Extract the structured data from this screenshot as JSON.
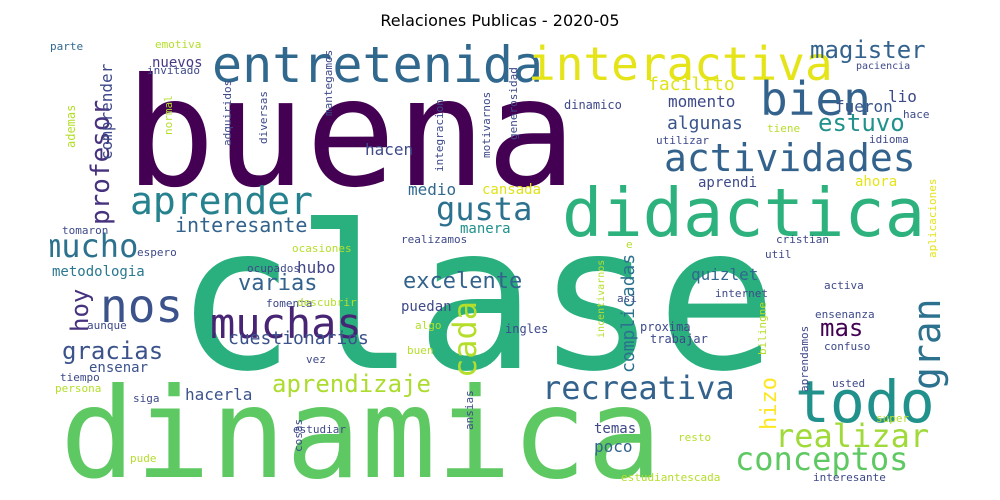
{
  "title": "Relaciones Publicas - 2020-05",
  "words": [
    {
      "text": "buena",
      "color": "#440154"
    },
    {
      "text": "clase",
      "color": "#2ab07f"
    },
    {
      "text": "dinamica",
      "color": "#5ec962"
    },
    {
      "text": "didactica",
      "color": "#2db27d"
    },
    {
      "text": "entretenida",
      "color": "#31688e"
    },
    {
      "text": "interactiva",
      "color": "#e4e419"
    },
    {
      "text": "bien",
      "color": "#33638d"
    },
    {
      "text": "actividades",
      "color": "#33638d"
    },
    {
      "text": "todo",
      "color": "#21918c"
    },
    {
      "text": "aprender",
      "color": "#26828e"
    },
    {
      "text": "mucho",
      "color": "#2c728e"
    },
    {
      "text": "nos",
      "color": "#3b528b"
    },
    {
      "text": "muchas",
      "color": "#482475"
    },
    {
      "text": "recreativa",
      "color": "#33638d"
    },
    {
      "text": "realizar",
      "color": "#a0da39"
    },
    {
      "text": "conceptos",
      "color": "#5ec962"
    },
    {
      "text": "gusta",
      "color": "#2c728e"
    },
    {
      "text": "cada",
      "color": "#b5de2b"
    },
    {
      "text": "gran",
      "color": "#2c728e"
    },
    {
      "text": "magister",
      "color": "#33638d"
    },
    {
      "text": "estuvo",
      "color": "#21918c"
    },
    {
      "text": "profesor",
      "color": "#46327e"
    },
    {
      "text": "gracias",
      "color": "#3b528b"
    },
    {
      "text": "aprendizaje",
      "color": "#addc30"
    },
    {
      "text": "excelente",
      "color": "#33638d"
    },
    {
      "text": "varias",
      "color": "#33638d"
    },
    {
      "text": "cuestionarios",
      "color": "#3b528b"
    },
    {
      "text": "hoy",
      "color": "#46327e"
    },
    {
      "text": "hizo",
      "color": "#fde725"
    },
    {
      "text": "mas",
      "color": "#440154"
    },
    {
      "text": "interesante",
      "color": "#33638d"
    },
    {
      "text": "hacerla",
      "color": "#3b528b"
    },
    {
      "text": "fueron",
      "color": "#39568c"
    },
    {
      "text": "facilito",
      "color": "#dfe318"
    },
    {
      "text": "momento",
      "color": "#3e4989"
    },
    {
      "text": "algunas",
      "color": "#39568c"
    },
    {
      "text": "lio",
      "color": "#3e4989"
    },
    {
      "text": "metodologia",
      "color": "#2a788e"
    },
    {
      "text": "complicadas",
      "color": "#2c728e"
    },
    {
      "text": "quizlet",
      "color": "#31688e"
    },
    {
      "text": "temas",
      "color": "#3e4989"
    },
    {
      "text": "poco",
      "color": "#33638d"
    },
    {
      "text": "hubo",
      "color": "#414487"
    },
    {
      "text": "puedan",
      "color": "#3e4989"
    },
    {
      "text": "hacen",
      "color": "#3e4989"
    },
    {
      "text": "medio",
      "color": "#31688e"
    },
    {
      "text": "cansada",
      "color": "#dfe318"
    },
    {
      "text": "manera",
      "color": "#21918c"
    },
    {
      "text": "ahora",
      "color": "#e5e419"
    },
    {
      "text": "aprendi",
      "color": "#3e4989"
    },
    {
      "text": "comprender",
      "color": "#3e4989"
    },
    {
      "text": "nuevos",
      "color": "#443983"
    },
    {
      "text": "emotiva",
      "color": "#b5de2b"
    },
    {
      "text": "invitado",
      "color": "#3e4989"
    },
    {
      "text": "ademas",
      "color": "#b5de2b"
    },
    {
      "text": "ensenar",
      "color": "#3b528b"
    },
    {
      "text": "parte",
      "color": "#31688e"
    },
    {
      "text": "paciencia",
      "color": "#3e4989"
    },
    {
      "text": "dinamico",
      "color": "#3e4989"
    },
    {
      "text": "utilizar",
      "color": "#3e4989"
    },
    {
      "text": "tiene",
      "color": "#b5de2b"
    },
    {
      "text": "idioma",
      "color": "#3e4989"
    },
    {
      "text": "hace",
      "color": "#3e4989"
    },
    {
      "text": "realizamos",
      "color": "#3e4989"
    },
    {
      "text": "cristian",
      "color": "#3e4989"
    },
    {
      "text": "util",
      "color": "#3e4989"
    },
    {
      "text": "internet",
      "color": "#3e4989"
    },
    {
      "text": "activa",
      "color": "#3e4989"
    },
    {
      "text": "ensenanza",
      "color": "#3e4989"
    },
    {
      "text": "proxima",
      "color": "#3e4989"
    },
    {
      "text": "trabajar",
      "color": "#3e4989"
    },
    {
      "text": "ingles",
      "color": "#3e4989"
    },
    {
      "text": "confuso",
      "color": "#3e4989"
    },
    {
      "text": "usted",
      "color": "#3e4989"
    },
    {
      "text": "super",
      "color": "#b5de2b"
    },
    {
      "text": "resto",
      "color": "#b5de2b"
    },
    {
      "text": "estudiantescada",
      "color": "#b5de2b"
    },
    {
      "text": "interesante",
      "color": "#3e4989"
    },
    {
      "text": "ocupados",
      "color": "#3e4989"
    },
    {
      "text": "ocasiones",
      "color": "#b5de2b"
    },
    {
      "text": "espero",
      "color": "#3e4989"
    },
    {
      "text": "fomenta",
      "color": "#3e4989"
    },
    {
      "text": "descubrir",
      "color": "#b5de2b"
    },
    {
      "text": "algo",
      "color": "#b5de2b"
    },
    {
      "text": "aunque",
      "color": "#3e4989"
    },
    {
      "text": "buen",
      "color": "#b5de2b"
    },
    {
      "text": "vez",
      "color": "#3e4989"
    },
    {
      "text": "tiempo",
      "color": "#3e4989"
    },
    {
      "text": "persona",
      "color": "#b5de2b"
    },
    {
      "text": "siga",
      "color": "#3e4989"
    },
    {
      "text": "estudiar",
      "color": "#3e4989"
    },
    {
      "text": "pude",
      "color": "#b5de2b"
    },
    {
      "text": "tomaron",
      "color": "#3e4989"
    },
    {
      "text": "mantegamos",
      "color": "#3e4989"
    },
    {
      "text": "adquiridos",
      "color": "#3e4989"
    },
    {
      "text": "diversas",
      "color": "#3e4989"
    },
    {
      "text": "normal",
      "color": "#b5de2b"
    },
    {
      "text": "integracion",
      "color": "#3e4989"
    },
    {
      "text": "motivarnos",
      "color": "#3e4989"
    },
    {
      "text": "generosidad",
      "color": "#3e4989"
    },
    {
      "text": "ansias",
      "color": "#3e4989"
    },
    {
      "text": "cosas",
      "color": "#3e4989"
    },
    {
      "text": "incentivarnos",
      "color": "#b5de2b"
    },
    {
      "text": "asi",
      "color": "#3e4989"
    },
    {
      "text": "bilingne",
      "color": "#b5de2b"
    },
    {
      "text": "aprendamos",
      "color": "#3e4989"
    },
    {
      "text": "aplicaciones",
      "color": "#e5e419"
    },
    {
      "text": "e",
      "color": "#b5de2b"
    }
  ]
}
